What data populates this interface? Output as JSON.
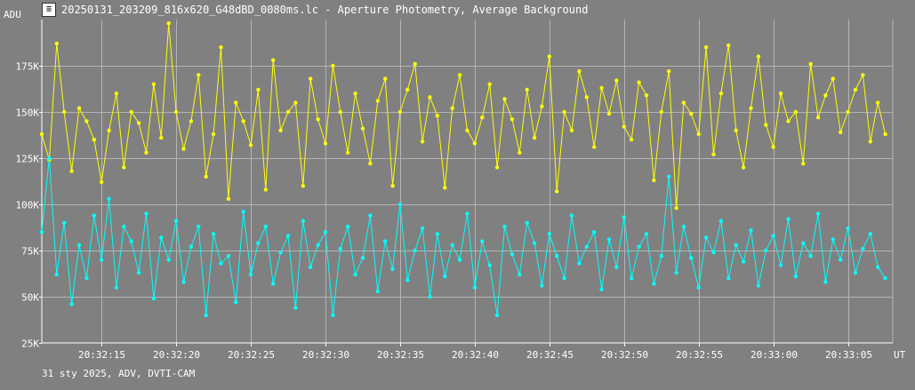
{
  "window": {
    "title": "20250131_203209_816x620_G48dBD_0080ms.lc - Aperture Photometry, Average Background",
    "icon": "lightcurve-app-icon"
  },
  "footer": {
    "info": "31 sty 2025, ADV, DVTI-CAM"
  },
  "colors": {
    "background": "#808080",
    "grid": "#b4b4b4",
    "axis": "#ffffff",
    "series_target": "#ffff00",
    "series_comparison": "#00ffff"
  },
  "chart_data": {
    "type": "line",
    "title": "20250131_203209_816x620_G48dBD_0080ms.lc - Aperture Photometry, Average Background",
    "ylabel": "ADU",
    "xlabel": "UT",
    "xlim": [
      "20:32:11",
      "20:33:08"
    ],
    "ylim": [
      25000,
      200000
    ],
    "grid": true,
    "markers": true,
    "y_ticks": [
      {
        "value": 25000,
        "label": "25K"
      },
      {
        "value": 50000,
        "label": "50K"
      },
      {
        "value": 75000,
        "label": "75K"
      },
      {
        "value": 100000,
        "label": "100K"
      },
      {
        "value": 125000,
        "label": "125K"
      },
      {
        "value": 150000,
        "label": "150K"
      },
      {
        "value": 175000,
        "label": "175K"
      }
    ],
    "x_ticks": [
      {
        "value": "20:32:15",
        "label": "20:32:15"
      },
      {
        "value": "20:32:20",
        "label": "20:32:20"
      },
      {
        "value": "20:32:25",
        "label": "20:32:25"
      },
      {
        "value": "20:32:30",
        "label": "20:32:30"
      },
      {
        "value": "20:32:35",
        "label": "20:32:35"
      },
      {
        "value": "20:32:40",
        "label": "20:32:40"
      },
      {
        "value": "20:32:45",
        "label": "20:32:45"
      },
      {
        "value": "20:32:50",
        "label": "20:32:50"
      },
      {
        "value": "20:32:55",
        "label": "20:32:55"
      },
      {
        "value": "20:33:00",
        "label": "20:33:00"
      },
      {
        "value": "20:33:05",
        "label": "20:33:05"
      }
    ],
    "series": [
      {
        "color": "#ffff00",
        "x": [
          "20:32:11.0",
          "20:32:11.5",
          "20:32:12.0",
          "20:32:12.5",
          "20:32:13.0",
          "20:32:13.5",
          "20:32:14.0",
          "20:32:14.5",
          "20:32:15.0",
          "20:32:15.5",
          "20:32:16.0",
          "20:32:16.5",
          "20:32:17.0",
          "20:32:17.5",
          "20:32:18.0",
          "20:32:18.5",
          "20:32:19.0",
          "20:32:19.5",
          "20:32:20.0",
          "20:32:20.5",
          "20:32:21.0",
          "20:32:21.5",
          "20:32:22.0",
          "20:32:22.5",
          "20:32:23.0",
          "20:32:23.5",
          "20:32:24.0",
          "20:32:24.5",
          "20:32:25.0",
          "20:32:25.5",
          "20:32:26.0",
          "20:32:26.5",
          "20:32:27.0",
          "20:32:27.5",
          "20:32:28.0",
          "20:32:28.5",
          "20:32:29.0",
          "20:32:29.5",
          "20:32:30.0",
          "20:32:30.5",
          "20:32:31.0",
          "20:32:31.5",
          "20:32:32.0",
          "20:32:32.5",
          "20:32:33.0",
          "20:32:33.5",
          "20:32:34.0",
          "20:32:34.5",
          "20:32:35.0",
          "20:32:35.5",
          "20:32:36.0",
          "20:32:36.5",
          "20:32:37.0",
          "20:32:37.5",
          "20:32:38.0",
          "20:32:38.5",
          "20:32:39.0",
          "20:32:39.5",
          "20:32:40.0",
          "20:32:40.5",
          "20:32:41.0",
          "20:32:41.5",
          "20:32:42.0",
          "20:32:42.5",
          "20:32:43.0",
          "20:32:43.5",
          "20:32:44.0",
          "20:32:44.5",
          "20:32:45.0",
          "20:32:45.5",
          "20:32:46.0",
          "20:32:46.5",
          "20:32:47.0",
          "20:32:47.5",
          "20:32:48.0",
          "20:32:48.5",
          "20:32:49.0",
          "20:32:49.5",
          "20:32:50.0",
          "20:32:50.5",
          "20:32:51.0",
          "20:32:51.5",
          "20:32:52.0",
          "20:32:52.5",
          "20:32:53.0",
          "20:32:53.5",
          "20:32:54.0",
          "20:32:54.5",
          "20:32:55.0",
          "20:32:55.5",
          "20:32:56.0",
          "20:32:56.5",
          "20:32:57.0",
          "20:32:57.5",
          "20:32:58.0",
          "20:32:58.5",
          "20:32:59.0",
          "20:32:59.5",
          "20:33:00.0",
          "20:33:00.5",
          "20:33:01.0",
          "20:33:01.5",
          "20:33:02.0",
          "20:33:02.5",
          "20:33:03.0",
          "20:33:03.5",
          "20:33:04.0",
          "20:33:04.5",
          "20:33:05.0",
          "20:33:05.5",
          "20:33:06.0",
          "20:33:06.5",
          "20:33:07.0",
          "20:33:07.5"
        ],
        "values": [
          138000,
          124000,
          187000,
          150000,
          118000,
          152000,
          145000,
          135000,
          112000,
          140000,
          160000,
          120000,
          150000,
          144000,
          128000,
          165000,
          136000,
          198000,
          150000,
          130000,
          145000,
          170000,
          115000,
          138000,
          185000,
          103000,
          155000,
          145000,
          132000,
          162000,
          108000,
          178000,
          140000,
          150000,
          155000,
          110000,
          168000,
          146000,
          133000,
          175000,
          150000,
          128000,
          160000,
          141000,
          122000,
          156000,
          168000,
          110000,
          150000,
          162000,
          176000,
          134000,
          158000,
          148000,
          109000,
          152000,
          170000,
          140000,
          133000,
          147000,
          165000,
          120000,
          157000,
          146000,
          128000,
          162000,
          136000,
          153000,
          180000,
          107000,
          150000,
          140000,
          172000,
          158000,
          131000,
          163000,
          149000,
          167000,
          142000,
          135000,
          166000,
          159000,
          113000,
          150000,
          172000,
          98000,
          155000,
          149000,
          138000,
          185000,
          127000,
          160000,
          186000,
          140000,
          120000,
          152000,
          180000,
          143000,
          131000,
          160000,
          145000,
          150000,
          122000,
          176000,
          147000,
          159000,
          168000,
          139000,
          150000,
          162000,
          170000,
          134000,
          155000,
          138000
        ]
      },
      {
        "color": "#00ffff",
        "x": [
          "20:32:11.0",
          "20:32:11.5",
          "20:32:12.0",
          "20:32:12.5",
          "20:32:13.0",
          "20:32:13.5",
          "20:32:14.0",
          "20:32:14.5",
          "20:32:15.0",
          "20:32:15.5",
          "20:32:16.0",
          "20:32:16.5",
          "20:32:17.0",
          "20:32:17.5",
          "20:32:18.0",
          "20:32:18.5",
          "20:32:19.0",
          "20:32:19.5",
          "20:32:20.0",
          "20:32:20.5",
          "20:32:21.0",
          "20:32:21.5",
          "20:32:22.0",
          "20:32:22.5",
          "20:32:23.0",
          "20:32:23.5",
          "20:32:24.0",
          "20:32:24.5",
          "20:32:25.0",
          "20:32:25.5",
          "20:32:26.0",
          "20:32:26.5",
          "20:32:27.0",
          "20:32:27.5",
          "20:32:28.0",
          "20:32:28.5",
          "20:32:29.0",
          "20:32:29.5",
          "20:32:30.0",
          "20:32:30.5",
          "20:32:31.0",
          "20:32:31.5",
          "20:32:32.0",
          "20:32:32.5",
          "20:32:33.0",
          "20:32:33.5",
          "20:32:34.0",
          "20:32:34.5",
          "20:32:35.0",
          "20:32:35.5",
          "20:32:36.0",
          "20:32:36.5",
          "20:32:37.0",
          "20:32:37.5",
          "20:32:38.0",
          "20:32:38.5",
          "20:32:39.0",
          "20:32:39.5",
          "20:32:40.0",
          "20:32:40.5",
          "20:32:41.0",
          "20:32:41.5",
          "20:32:42.0",
          "20:32:42.5",
          "20:32:43.0",
          "20:32:43.5",
          "20:32:44.0",
          "20:32:44.5",
          "20:32:45.0",
          "20:32:45.5",
          "20:32:46.0",
          "20:32:46.5",
          "20:32:47.0",
          "20:32:47.5",
          "20:32:48.0",
          "20:32:48.5",
          "20:32:49.0",
          "20:32:49.5",
          "20:32:50.0",
          "20:32:50.5",
          "20:32:51.0",
          "20:32:51.5",
          "20:32:52.0",
          "20:32:52.5",
          "20:32:53.0",
          "20:32:53.5",
          "20:32:54.0",
          "20:32:54.5",
          "20:32:55.0",
          "20:32:55.5",
          "20:32:56.0",
          "20:32:56.5",
          "20:32:57.0",
          "20:32:57.5",
          "20:32:58.0",
          "20:32:58.5",
          "20:32:59.0",
          "20:32:59.5",
          "20:33:00.0",
          "20:33:00.5",
          "20:33:01.0",
          "20:33:01.5",
          "20:33:02.0",
          "20:33:02.5",
          "20:33:03.0",
          "20:33:03.5",
          "20:33:04.0",
          "20:33:04.5",
          "20:33:05.0",
          "20:33:05.5",
          "20:33:06.0",
          "20:33:06.5",
          "20:33:07.0",
          "20:33:07.5"
        ],
        "values": [
          85000,
          125000,
          62000,
          90000,
          46000,
          78000,
          60000,
          94000,
          70000,
          103000,
          55000,
          88000,
          80000,
          63000,
          95000,
          49000,
          82000,
          70000,
          91000,
          58000,
          77000,
          88000,
          40000,
          84000,
          68000,
          72000,
          47000,
          96000,
          62000,
          79000,
          88000,
          57000,
          74000,
          83000,
          44000,
          91000,
          66000,
          78000,
          85000,
          40000,
          76000,
          88000,
          62000,
          71000,
          94000,
          53000,
          80000,
          65000,
          100000,
          59000,
          75000,
          87000,
          50000,
          84000,
          61000,
          78000,
          70000,
          95000,
          55000,
          80000,
          67000,
          40000,
          88000,
          73000,
          62000,
          90000,
          79000,
          56000,
          84000,
          72000,
          60000,
          94000,
          68000,
          77000,
          85000,
          54000,
          81000,
          66000,
          93000,
          60000,
          77000,
          84000,
          57000,
          72000,
          115000,
          63000,
          88000,
          71000,
          55000,
          82000,
          74000,
          91000,
          60000,
          78000,
          69000,
          86000,
          56000,
          75000,
          83000,
          67000,
          92000,
          61000,
          79000,
          72000,
          95000,
          58000,
          81000,
          70000,
          87000,
          63000,
          76000,
          84000,
          66000,
          60000
        ]
      }
    ]
  }
}
